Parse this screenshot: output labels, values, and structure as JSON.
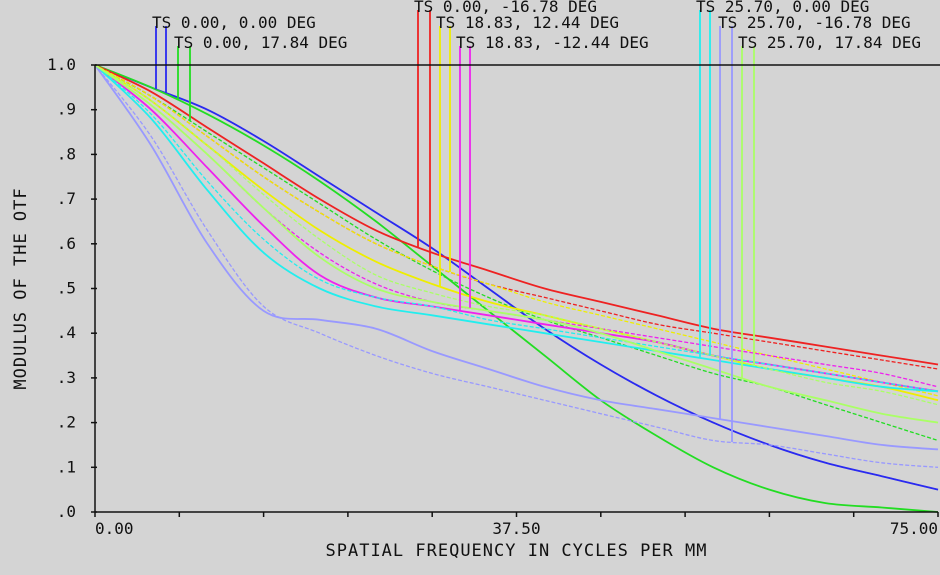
{
  "chart_data": {
    "type": "line",
    "xlabel": "SPATIAL FREQUENCY IN CYCLES PER MM",
    "ylabel": "MODULUS OF THE OTF",
    "xlim": [
      0,
      75
    ],
    "ylim": [
      0,
      1
    ],
    "x_ticks": [
      "0.00",
      "37.50",
      "75.00"
    ],
    "y_ticks": [
      ".0",
      ".1",
      ".2",
      ".3",
      ".4",
      ".5",
      ".6",
      ".7",
      ".8",
      ".9",
      "1.0"
    ],
    "x": [
      0,
      5,
      10,
      15,
      20,
      25,
      30,
      35,
      40,
      45,
      50,
      55,
      60,
      65,
      70,
      75
    ],
    "fields": [
      {
        "name": "TS 0.00, 0.00 DEG",
        "color": "#2a2af0",
        "tangential": [
          1.0,
          0.95,
          0.9,
          0.83,
          0.75,
          0.67,
          0.59,
          0.5,
          0.41,
          0.33,
          0.26,
          0.2,
          0.15,
          0.11,
          0.08,
          0.05
        ],
        "sagittal": [
          1.0,
          0.95,
          0.9,
          0.83,
          0.75,
          0.67,
          0.59,
          0.5,
          0.41,
          0.33,
          0.26,
          0.2,
          0.15,
          0.11,
          0.08,
          0.05
        ]
      },
      {
        "name": "TS 0.00, 17.84 DEG",
        "color": "#22dd22",
        "tangential": [
          1.0,
          0.95,
          0.89,
          0.82,
          0.74,
          0.65,
          0.55,
          0.45,
          0.35,
          0.25,
          0.17,
          0.1,
          0.05,
          0.02,
          0.01,
          0.0
        ],
        "sagittal": [
          1.0,
          0.93,
          0.85,
          0.77,
          0.69,
          0.61,
          0.54,
          0.48,
          0.43,
          0.39,
          0.35,
          0.31,
          0.28,
          0.24,
          0.2,
          0.16
        ]
      },
      {
        "name": "TS 0.00, -16.78 DEG",
        "color": "#ee2222",
        "tangential": [
          1.0,
          0.94,
          0.86,
          0.78,
          0.7,
          0.63,
          0.58,
          0.54,
          0.5,
          0.47,
          0.44,
          0.41,
          0.39,
          0.37,
          0.35,
          0.33
        ],
        "sagittal": [
          1.0,
          0.93,
          0.84,
          0.75,
          0.67,
          0.6,
          0.55,
          0.51,
          0.48,
          0.45,
          0.42,
          0.4,
          0.38,
          0.36,
          0.34,
          0.32
        ]
      },
      {
        "name": "TS 18.83, 12.44 DEG",
        "color": "#eeee00",
        "tangential": [
          1.0,
          0.92,
          0.82,
          0.72,
          0.63,
          0.56,
          0.51,
          0.47,
          0.44,
          0.41,
          0.38,
          0.35,
          0.32,
          0.3,
          0.28,
          0.25
        ],
        "sagittal": [
          1.0,
          0.93,
          0.84,
          0.75,
          0.67,
          0.6,
          0.55,
          0.51,
          0.47,
          0.44,
          0.41,
          0.38,
          0.35,
          0.32,
          0.29,
          0.26
        ]
      },
      {
        "name": "TS 18.83, -12.44 DEG",
        "color": "#ee22ee",
        "tangential": [
          1.0,
          0.9,
          0.77,
          0.64,
          0.53,
          0.48,
          0.46,
          0.44,
          0.42,
          0.4,
          0.38,
          0.35,
          0.33,
          0.31,
          0.29,
          0.27
        ],
        "sagittal": [
          1.0,
          0.91,
          0.8,
          0.68,
          0.58,
          0.51,
          0.47,
          0.45,
          0.43,
          0.41,
          0.39,
          0.37,
          0.35,
          0.33,
          0.31,
          0.28
        ]
      },
      {
        "name": "TS 25.70, 0.00 DEG",
        "color": "#22eeee",
        "tangential": [
          1.0,
          0.88,
          0.72,
          0.58,
          0.5,
          0.46,
          0.44,
          0.42,
          0.4,
          0.38,
          0.36,
          0.34,
          0.32,
          0.3,
          0.28,
          0.27
        ],
        "sagittal": [
          1.0,
          0.89,
          0.74,
          0.61,
          0.52,
          0.48,
          0.46,
          0.43,
          0.41,
          0.39,
          0.37,
          0.35,
          0.33,
          0.31,
          0.29,
          0.27
        ]
      },
      {
        "name": "TS 25.70, -16.78 DEG",
        "color": "#9999ff",
        "tangential": [
          1.0,
          0.82,
          0.6,
          0.45,
          0.43,
          0.41,
          0.36,
          0.32,
          0.28,
          0.25,
          0.23,
          0.21,
          0.19,
          0.17,
          0.15,
          0.14
        ],
        "sagittal": [
          1.0,
          0.84,
          0.63,
          0.46,
          0.4,
          0.35,
          0.31,
          0.28,
          0.25,
          0.22,
          0.19,
          0.16,
          0.15,
          0.13,
          0.11,
          0.1
        ]
      },
      {
        "name": "TS 25.70, 17.84 DEG",
        "color": "#aaff66",
        "tangential": [
          1.0,
          0.91,
          0.8,
          0.68,
          0.57,
          0.5,
          0.47,
          0.45,
          0.43,
          0.4,
          0.36,
          0.32,
          0.28,
          0.25,
          0.22,
          0.2
        ],
        "sagittal": [
          1.0,
          0.92,
          0.82,
          0.71,
          0.61,
          0.53,
          0.49,
          0.46,
          0.44,
          0.41,
          0.38,
          0.35,
          0.32,
          0.29,
          0.27,
          0.24
        ]
      }
    ]
  }
}
